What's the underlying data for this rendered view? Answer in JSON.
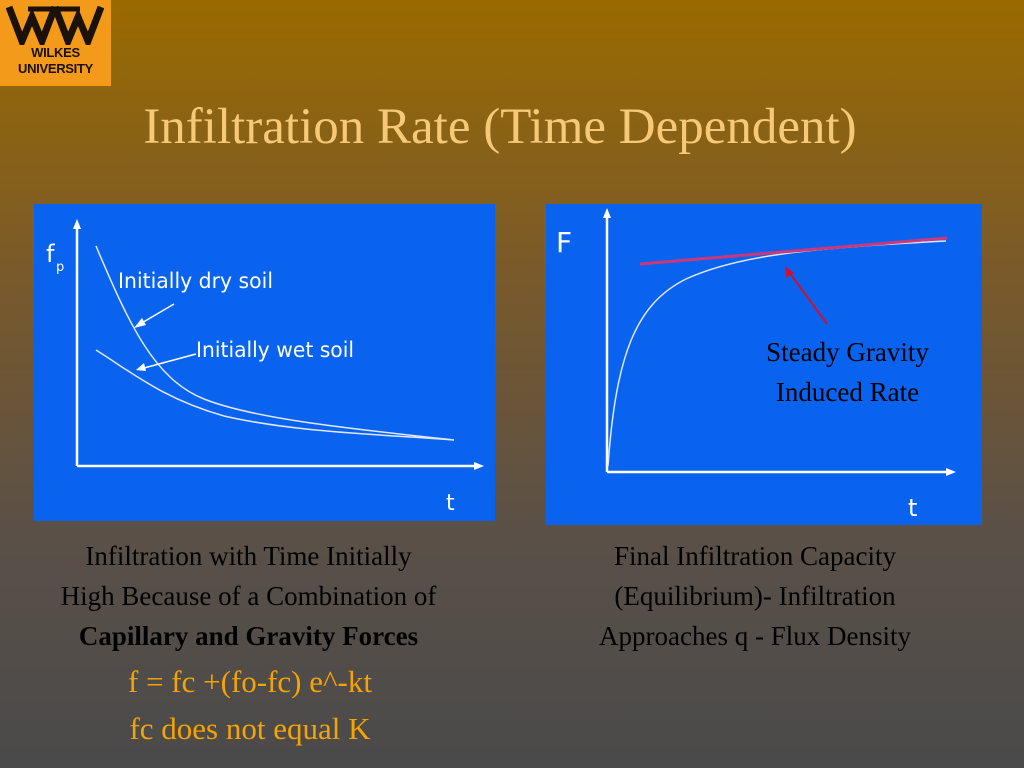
{
  "logo": {
    "line1": "WILKES",
    "line2": "UNIVERSITY"
  },
  "title": "Infiltration Rate (Time Dependent)",
  "left_chart": {
    "ylabel": "f",
    "ylabel_sub": "p",
    "xlabel": "t",
    "label_dry": "Initially dry soil",
    "label_wet": "Initially wet soil"
  },
  "right_chart": {
    "ylabel": "F",
    "xlabel": "t",
    "annotation_line1": "Steady Gravity",
    "annotation_line2": "Induced  Rate"
  },
  "caption_left": {
    "line1": "Infiltration with Time Initially",
    "line2": "High Because of a Combination of",
    "line3": "Capillary and Gravity Forces"
  },
  "caption_right": {
    "line1": "Final Infiltration Capacity",
    "line2": "(Equilibrium)- Infiltration",
    "line3": "Approaches q  - Flux Density"
  },
  "formula1": "f = fc +(fo-fc) e^-kt",
  "formula2": "fc does not equal K"
}
